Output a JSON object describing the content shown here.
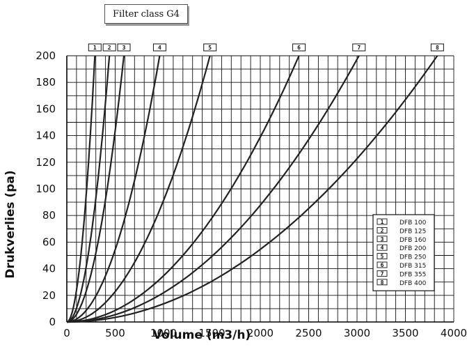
{
  "chart_data": {
    "type": "line",
    "title": "Filter class G4",
    "xlabel": "Volume (m3/h)",
    "ylabel": "Drukverlies (pa)",
    "xlim": [
      0,
      4000
    ],
    "ylim": [
      0,
      200
    ],
    "x_ticks": [
      "0",
      "500",
      "1000",
      "1500",
      "2000",
      "2500",
      "3000",
      "3500",
      "4000"
    ],
    "y_ticks": [
      "0",
      "20",
      "40",
      "60",
      "80",
      "100",
      "120",
      "140",
      "160",
      "180",
      "200"
    ],
    "grid": true,
    "legend_position": "bottom-right",
    "series": [
      {
        "tag": "1",
        "name": "DFB 100",
        "max_volume": 290
      },
      {
        "tag": "2",
        "name": "DFB 125",
        "max_volume": 440
      },
      {
        "tag": "3",
        "name": "DFB 160",
        "max_volume": 590
      },
      {
        "tag": "4",
        "name": "DFB 200",
        "max_volume": 960
      },
      {
        "tag": "5",
        "name": "DFB 250",
        "max_volume": 1480
      },
      {
        "tag": "6",
        "name": "DFB 315",
        "max_volume": 2400
      },
      {
        "tag": "7",
        "name": "DFB 355",
        "max_volume": 3020
      },
      {
        "tag": "8",
        "name": "DFB 400",
        "max_volume": 3830
      }
    ],
    "pressure_at_max_volume": 200,
    "curve_color": "#222222"
  }
}
